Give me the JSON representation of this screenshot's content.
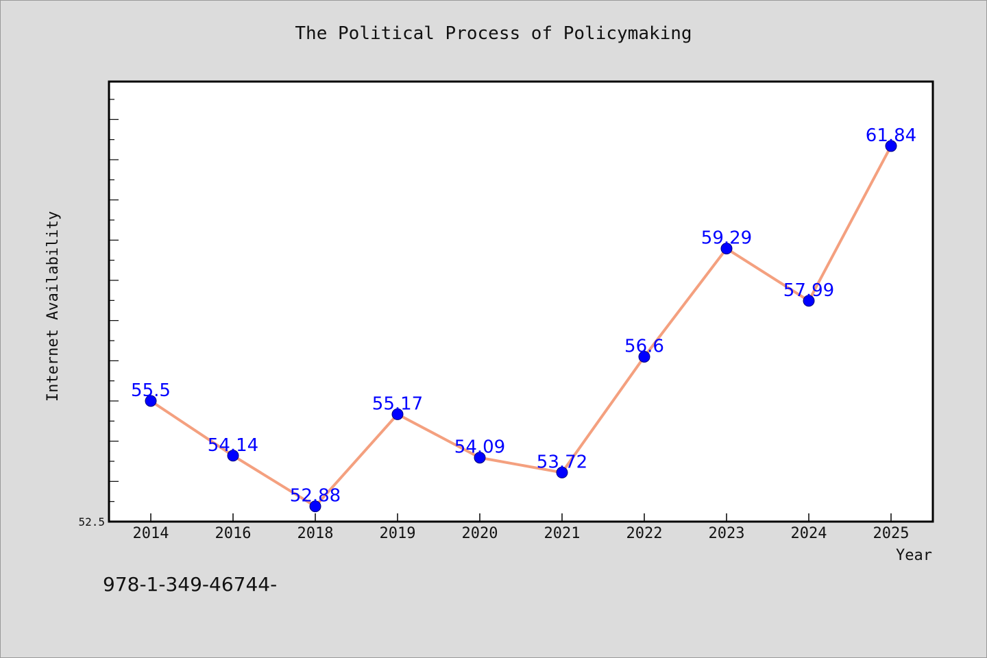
{
  "chart_data": {
    "type": "line",
    "title": "The Political Process of Policymaking",
    "xlabel": "Year",
    "ylabel": "Internet Availability",
    "categories": [
      "2014",
      "2016",
      "2018",
      "2019",
      "2020",
      "2021",
      "2022",
      "2023",
      "2024",
      "2025"
    ],
    "series": [
      {
        "values": [
          55.5,
          54.14,
          52.88,
          55.17,
          54.09,
          53.72,
          56.6,
          59.29,
          57.99,
          61.84
        ],
        "labels": [
          "55.5",
          "54.14",
          "52.88",
          "55.17",
          "54.09",
          "53.72",
          "56.6",
          "59.29",
          "57.99",
          "61.84"
        ]
      }
    ],
    "y_tick_labels": [
      "52.5"
    ],
    "ylim": [
      52.5,
      63.0
    ],
    "grid": false,
    "line_color": "#f4a07f",
    "marker_color": "#0000ff"
  },
  "footer_text": "978-1-349-46744-"
}
